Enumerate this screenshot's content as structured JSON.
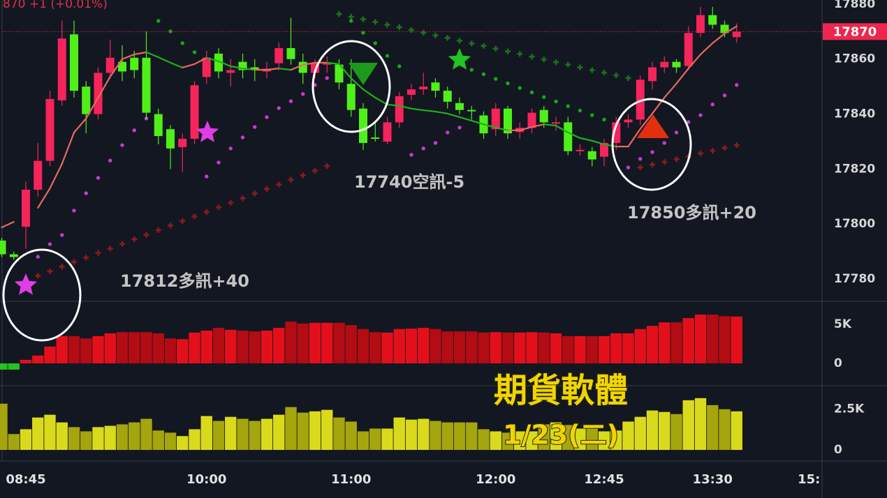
{
  "chart_data": {
    "type": "candlestick",
    "header": "870 +1 (+0.01%)",
    "categories": [
      null,
      null,
      "08:45",
      null,
      null,
      null,
      null,
      null,
      null,
      null,
      null,
      null,
      null,
      null,
      null,
      null,
      null,
      "10:00",
      null,
      null,
      null,
      null,
      null,
      null,
      null,
      null,
      null,
      null,
      null,
      "11:00",
      null,
      null,
      null,
      null,
      null,
      null,
      null,
      null,
      null,
      null,
      null,
      "12:00",
      null,
      null,
      null,
      null,
      null,
      null,
      null,
      null,
      "12:45",
      null,
      null,
      null,
      null,
      null,
      null,
      null,
      null,
      "13:30",
      null,
      null,
      null,
      null,
      null,
      null,
      null,
      "15:"
    ],
    "open": [
      17794,
      17789,
      17799,
      17812.5,
      17823,
      17845,
      17869,
      17850,
      17840,
      17855,
      17859,
      17860.5,
      17860.5,
      17840,
      17834.5,
      17828,
      17831,
      17853.5,
      17862,
      17855,
      17859,
      17857,
      17855.5,
      17858.5,
      17864,
      17859,
      17855,
      17858,
      17858,
      17851,
      17842,
      17831.5,
      17830,
      17837,
      17847,
      17849,
      17851.5,
      17848.5,
      17844,
      17841.5,
      17839.5,
      17834.5,
      17842,
      17833.5,
      17835,
      17841.5,
      17836.5,
      17837,
      17826.5,
      17826.5,
      17824.5,
      17829.5,
      17837,
      17838,
      17852,
      17857,
      17859,
      17857.5,
      17869.5,
      17876,
      17872.5,
      17868,
      null,
      null,
      null,
      null,
      null,
      null
    ],
    "high": [
      17795,
      17790,
      17815.5,
      17829.5,
      17848.5,
      17874,
      17874,
      17852,
      17857,
      17867,
      17865,
      17863,
      17870,
      17842,
      17836,
      17833,
      17852,
      17863,
      17864,
      17860,
      17862,
      17860,
      17859,
      17866,
      17875,
      17862,
      17860,
      17861,
      17860,
      17860,
      17844,
      17837,
      17839,
      17848,
      17851,
      17855,
      17853,
      17850,
      17846,
      17843,
      17841,
      17844,
      17843,
      17837,
      17842,
      17843,
      17839,
      17839,
      17829,
      17828,
      17831,
      17839,
      17840,
      17854,
      17859,
      17861,
      17860,
      17872,
      17879,
      17879,
      17874,
      17873,
      null,
      null,
      null,
      null,
      null,
      null
    ],
    "low": [
      17788,
      17787,
      17791,
      17810,
      17821,
      17843,
      17846,
      17833,
      17838,
      17853,
      17852,
      17853,
      17838,
      17829,
      17820,
      17819,
      17829,
      17851,
      17853,
      17850,
      17853,
      17852,
      17853,
      17856,
      17858,
      17851,
      17853,
      17855,
      17849,
      17839,
      17827,
      17830,
      17829,
      17835,
      17845,
      17847,
      17846,
      17842,
      17840,
      17838,
      17831,
      17832,
      17831,
      17831,
      17833,
      17835,
      17834,
      17825,
      17825,
      17821,
      17821,
      17827,
      17835,
      17836,
      17849,
      17855,
      17855,
      17856,
      17868,
      17871,
      17868,
      17866,
      null,
      null,
      null,
      null,
      null,
      null
    ],
    "close": [
      17789,
      17788,
      17812.5,
      17823,
      17845.5,
      17867.5,
      17848.5,
      17840,
      17855,
      17860.5,
      17855.5,
      17856,
      17840.5,
      17832,
      17827.5,
      17831,
      17850.5,
      17860.5,
      17855.5,
      17856,
      17856,
      17856,
      17856.5,
      17864,
      17860,
      17855,
      17858.5,
      17858.5,
      17851.5,
      17841.5,
      17829.5,
      17831,
      17837,
      17846.5,
      17849,
      17850,
      17848.5,
      17844.5,
      17841.5,
      17841,
      17833,
      17842,
      17833,
      17835,
      17840.5,
      17837,
      17837,
      17826.5,
      17827,
      17823.5,
      17829.5,
      17837,
      17838,
      17852.5,
      17857,
      17859,
      17857,
      17869.5,
      17876,
      17872.5,
      17869.5,
      17870,
      null,
      null,
      null,
      null,
      null,
      null
    ],
    "up_color": "#f5245a",
    "down_color": "#4ff019",
    "ylim": [
      17771.9,
      17881.5
    ],
    "yticks": [
      17780,
      17800,
      17820,
      17840,
      17860,
      17880
    ],
    "last_price": 17870,
    "last_price_color": "#f0254e",
    "ma": {
      "up_color": "#e8695d",
      "down_color": "#1fb01b",
      "values": [
        17798.8,
        17800.8,
        null,
        17805.9,
        17813,
        17821.9,
        17833.3,
        17838.4,
        17846,
        17853.6,
        17860,
        17861.7,
        17862.5,
        17860.7,
        17858.7,
        17856.9,
        17858.2,
        17860.5,
        17859.2,
        17857.4,
        17856.6,
        17856.1,
        17856.1,
        17856.6,
        17856.1,
        17857.9,
        17858.7,
        17858.7,
        17858.2,
        17853,
        17849,
        17846,
        17843.5,
        17843,
        17842,
        17841.4,
        17840.9,
        17840.2,
        17838.9,
        17837.6,
        17836.3,
        17835.1,
        17834.1,
        17834.1,
        17835.3,
        17836.3,
        17835.8,
        17833.3,
        17831.3,
        17830.3,
        17829,
        17828.2,
        17828.2,
        17834.6,
        17840.2,
        17846,
        17851.1,
        17856.6,
        17861.7,
        17865.8,
        17869.3,
        17871.9,
        null,
        null,
        null,
        null,
        null,
        null
      ]
    },
    "dots": [
      {
        "color": "#c63ccf",
        "values": [
          null,
          null,
          null,
          17788.1,
          17792.7,
          17796,
          17804.9,
          17811.2,
          17816.8,
          17823.1,
          17828.7,
          17834.1,
          17838.4,
          null,
          null,
          null,
          null,
          17817.3,
          17822.4,
          17827.5,
          17831.5,
          17835.3,
          17838.9,
          17842.2,
          17844.7,
          17847.3,
          17850.6,
          17853.1,
          null,
          null,
          null,
          null,
          null,
          null,
          17825.2,
          17827.5,
          17829.5,
          17833.3,
          17835.1,
          null,
          null,
          null,
          null,
          null,
          null,
          null,
          null,
          null,
          null,
          null,
          null,
          null,
          17820.6,
          17823.7,
          17826.2,
          17829.5,
          17833.3,
          17837.1,
          17839.6,
          17843.5,
          17846.8,
          17850.6,
          null,
          null,
          null,
          null,
          null,
          null
        ]
      },
      {
        "color": "#17a817",
        "values": [
          null,
          null,
          null,
          null,
          null,
          null,
          null,
          null,
          null,
          null,
          null,
          null,
          null,
          17873.9,
          17870.1,
          17865.8,
          17862.5,
          null,
          null,
          null,
          null,
          null,
          null,
          null,
          null,
          null,
          null,
          null,
          null,
          17873.9,
          17869.6,
          17865.8,
          17861.2,
          17857.4,
          null,
          null,
          null,
          null,
          null,
          17856.1,
          17854.5,
          17852.8,
          17851.2,
          17849.5,
          17847.9,
          17846.2,
          17844.6,
          17842.9,
          17841.3,
          17839.6,
          17838,
          17836.3,
          null,
          null,
          null,
          null,
          null,
          null,
          null,
          null,
          null,
          null,
          null,
          null,
          null,
          null,
          null,
          null
        ]
      }
    ],
    "crosses": [
      {
        "color": "#8a1c1c",
        "values": [
          null,
          null,
          17779.5,
          17781.2,
          17782.8,
          17784.5,
          17786.2,
          17787.8,
          17789.5,
          17791.1,
          17792.8,
          17794.5,
          17796.1,
          17797.8,
          17799.5,
          17801.1,
          17802.8,
          17804.4,
          17806.1,
          17807.8,
          17809.4,
          17811.1,
          17812.8,
          17814.4,
          17816.1,
          17817.7,
          17819.4,
          17821.1,
          null,
          null,
          null,
          null,
          null,
          null,
          null,
          null,
          null,
          null,
          null,
          null,
          null,
          null,
          null,
          null,
          null,
          null,
          null,
          null,
          null,
          null,
          null,
          null,
          null,
          17820.6,
          17821.6,
          17822.6,
          17823.6,
          17824.6,
          17825.7,
          17826.7,
          17827.7,
          17828.7,
          null,
          null,
          null,
          null,
          null,
          null
        ]
      },
      {
        "color": "#1d6f1d",
        "values": [
          null,
          null,
          null,
          null,
          null,
          null,
          null,
          null,
          null,
          null,
          null,
          null,
          null,
          null,
          null,
          null,
          null,
          null,
          null,
          null,
          null,
          null,
          null,
          null,
          null,
          null,
          null,
          null,
          17876.4,
          17875.4,
          17874.5,
          17873.5,
          17872.5,
          17871.6,
          17870.6,
          17869.6,
          17868.6,
          17867.7,
          17866.7,
          17865.7,
          17864.8,
          17863.8,
          17862.8,
          17861.9,
          17860.9,
          17859.9,
          17858.9,
          17858,
          17857,
          17856,
          17855.1,
          17854.1,
          17853.1,
          null,
          null,
          null,
          null,
          null,
          null,
          null,
          null,
          null,
          null,
          null,
          null,
          null,
          null,
          null
        ]
      }
    ],
    "volume": [
      {
        "ylim": [
          -2770,
          7860
        ],
        "yticks": [
          0,
          {
            "value": 5000,
            "label": "5K"
          }
        ],
        "up_color": "#e3101b",
        "down_color": "#b30c13",
        "negative_color": "#22c322",
        "values": [
          -800,
          -800,
          450,
          1000,
          2150,
          3500,
          3500,
          3200,
          3500,
          3850,
          4000,
          4000,
          4000,
          3850,
          3200,
          3100,
          3950,
          4200,
          4550,
          4300,
          4200,
          4100,
          4200,
          4550,
          5350,
          5100,
          5200,
          5200,
          5200,
          4900,
          4400,
          4000,
          3950,
          4400,
          4450,
          4550,
          4400,
          4100,
          4100,
          4100,
          3950,
          4000,
          3950,
          3950,
          4000,
          3950,
          3850,
          3500,
          3500,
          3500,
          3500,
          3850,
          3850,
          4400,
          4800,
          5250,
          5250,
          5800,
          6250,
          6250,
          6050,
          6000,
          null,
          null,
          null,
          null,
          null,
          null
        ]
      },
      {
        "ylim": [
          -640,
          3900
        ],
        "yticks": [
          0,
          {
            "value": 2500,
            "label": "2.5K"
          }
        ],
        "up_color": "#dada1c",
        "down_color": "#a5a50e",
        "negative_color": "#22c322",
        "values": [
          2840,
          975,
          1270,
          1990,
          2160,
          1690,
          1400,
          1140,
          1400,
          1480,
          1570,
          1690,
          1910,
          1190,
          1060,
          850,
          1270,
          2080,
          1780,
          2030,
          1910,
          1780,
          1910,
          2160,
          2630,
          2290,
          2370,
          2460,
          1990,
          1740,
          1140,
          1310,
          1310,
          1990,
          1860,
          1910,
          1780,
          1690,
          1690,
          1690,
          1270,
          1140,
          1060,
          1140,
          1140,
          1570,
          1690,
          1530,
          1310,
          1400,
          1140,
          1190,
          1740,
          2030,
          2420,
          2330,
          2200,
          3050,
          3180,
          2750,
          2500,
          2370,
          null,
          null,
          null,
          null,
          null,
          null
        ]
      }
    ],
    "annotations": [
      "17812多訊+40",
      "17740空訊-5",
      "17850多訊+20"
    ],
    "watermark": [
      "期貨軟體",
      "1/23(二)"
    ]
  }
}
